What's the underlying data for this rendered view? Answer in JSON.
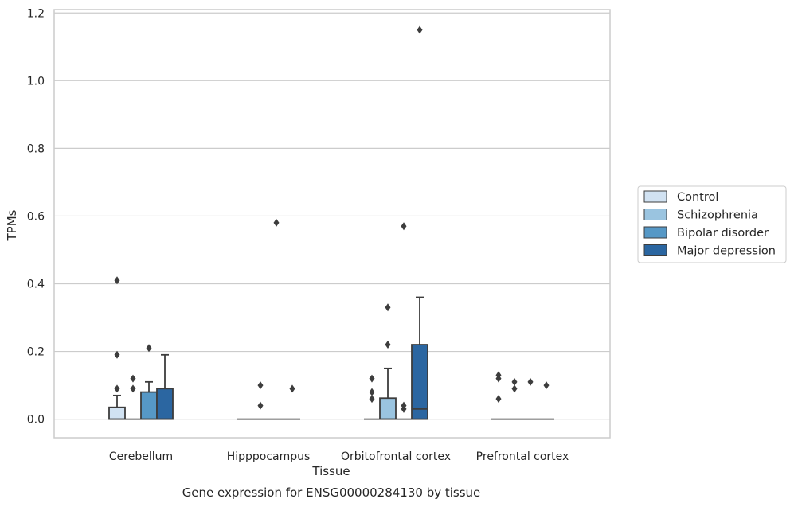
{
  "chart_data": {
    "type": "box",
    "caption": "Gene expression for ENSG00000284130 by tissue",
    "xlabel": "Tissue",
    "ylabel": "TPMs",
    "ylim": [
      -0.055,
      1.21
    ],
    "yticks": [
      0.0,
      0.2,
      0.4,
      0.6,
      0.8,
      1.0,
      1.2
    ],
    "ytick_labels": [
      "0.0",
      "0.2",
      "0.4",
      "0.6",
      "0.8",
      "1.0",
      "1.2"
    ],
    "grid": "horizontal",
    "categories": [
      "Cerebellum",
      "Hipppocampus",
      "Orbitofrontal cortex",
      "Prefrontal cortex"
    ],
    "legend_position": "right",
    "series": [
      {
        "name": "Control",
        "color": "#d1e2f2",
        "boxes": [
          {
            "q1": 0.0,
            "median": 0.0,
            "q3": 0.035,
            "whisker_low": 0.0,
            "whisker_high": 0.07,
            "outliers": [
              0.09,
              0.19,
              0.41
            ]
          },
          {
            "q1": 0.0,
            "median": 0.0,
            "q3": 0.0,
            "whisker_low": 0.0,
            "whisker_high": 0.0,
            "outliers": []
          },
          {
            "q1": 0.0,
            "median": 0.0,
            "q3": 0.0,
            "whisker_low": 0.0,
            "whisker_high": 0.0,
            "outliers": [
              0.06,
              0.08,
              0.12
            ]
          },
          {
            "q1": 0.0,
            "median": 0.0,
            "q3": 0.0,
            "whisker_low": 0.0,
            "whisker_high": 0.0,
            "outliers": [
              0.06,
              0.12,
              0.13
            ]
          }
        ]
      },
      {
        "name": "Schizophrenia",
        "color": "#9ac4e0",
        "boxes": [
          {
            "q1": 0.0,
            "median": 0.0,
            "q3": 0.0,
            "whisker_low": 0.0,
            "whisker_high": 0.0,
            "outliers": [
              0.09,
              0.12
            ]
          },
          {
            "q1": 0.0,
            "median": 0.0,
            "q3": 0.0,
            "whisker_low": 0.0,
            "whisker_high": 0.0,
            "outliers": [
              0.04,
              0.1
            ]
          },
          {
            "q1": 0.0,
            "median": 0.0,
            "q3": 0.062,
            "whisker_low": 0.0,
            "whisker_high": 0.15,
            "outliers": [
              0.22,
              0.33
            ]
          },
          {
            "q1": 0.0,
            "median": 0.0,
            "q3": 0.0,
            "whisker_low": 0.0,
            "whisker_high": 0.0,
            "outliers": [
              0.09,
              0.11
            ]
          }
        ]
      },
      {
        "name": "Bipolar disorder",
        "color": "#5698c6",
        "boxes": [
          {
            "q1": 0.0,
            "median": 0.0,
            "q3": 0.08,
            "whisker_low": 0.0,
            "whisker_high": 0.11,
            "outliers": [
              0.21
            ]
          },
          {
            "q1": 0.0,
            "median": 0.0,
            "q3": 0.0,
            "whisker_low": 0.0,
            "whisker_high": 0.0,
            "outliers": [
              0.58
            ]
          },
          {
            "q1": 0.0,
            "median": 0.0,
            "q3": 0.0,
            "whisker_low": 0.0,
            "whisker_high": 0.0,
            "outliers": [
              0.03,
              0.04,
              0.57
            ]
          },
          {
            "q1": 0.0,
            "median": 0.0,
            "q3": 0.0,
            "whisker_low": 0.0,
            "whisker_high": 0.0,
            "outliers": [
              0.11
            ]
          }
        ]
      },
      {
        "name": "Major depression",
        "color": "#2b66a1",
        "boxes": [
          {
            "q1": 0.0,
            "median": 0.0,
            "q3": 0.09,
            "whisker_low": 0.0,
            "whisker_high": 0.19,
            "outliers": []
          },
          {
            "q1": 0.0,
            "median": 0.0,
            "q3": 0.0,
            "whisker_low": 0.0,
            "whisker_high": 0.0,
            "outliers": [
              0.09
            ]
          },
          {
            "q1": 0.0,
            "median": 0.03,
            "q3": 0.22,
            "whisker_low": 0.0,
            "whisker_high": 0.36,
            "outliers": [
              1.15
            ]
          },
          {
            "q1": 0.0,
            "median": 0.0,
            "q3": 0.0,
            "whisker_low": 0.0,
            "whisker_high": 0.0,
            "outliers": [
              0.1
            ]
          }
        ]
      }
    ]
  }
}
